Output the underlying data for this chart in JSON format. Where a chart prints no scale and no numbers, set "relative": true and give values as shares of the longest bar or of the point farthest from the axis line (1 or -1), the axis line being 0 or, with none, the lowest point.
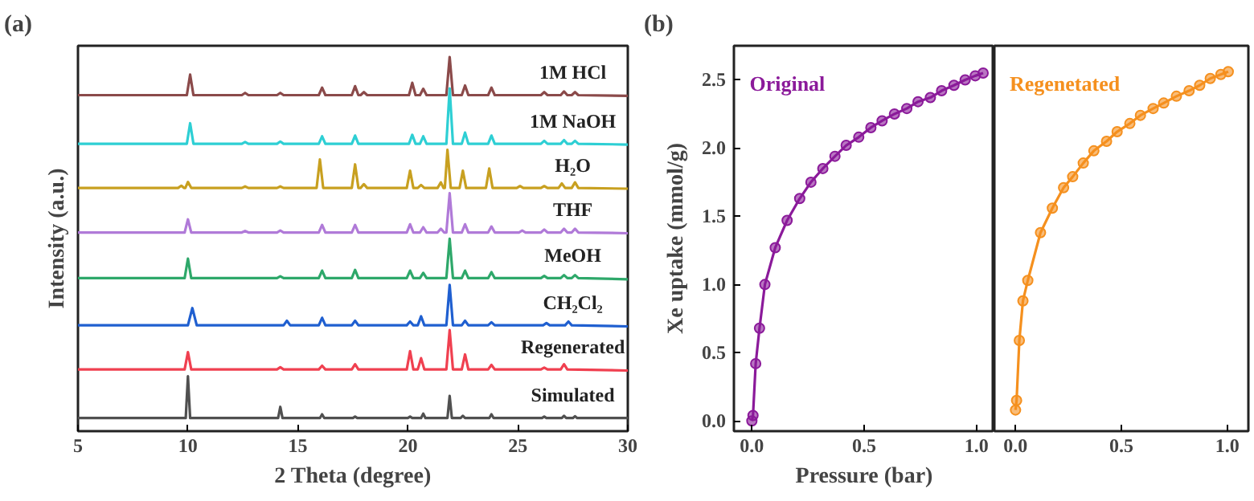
{
  "chart_data": [
    {
      "type": "line",
      "annotations": [
        "(a)"
      ],
      "xlabel": "2 Theta (degree)",
      "ylabel": "Intensity (a.u.)",
      "relative": true,
      "tick_labels": "x",
      "xlim": [
        5,
        30
      ],
      "xticks": [
        5,
        10,
        15,
        20,
        25,
        30
      ],
      "grid": false,
      "legend": false,
      "marker": "none",
      "line_style": "solid",
      "series": [
        {
          "name": "1M HCl",
          "color": "#8b4a4a",
          "x": [
            5,
            9.95,
            10.1,
            10.25,
            12.45,
            12.6,
            12.75,
            14.05,
            14.2,
            14.35,
            15.95,
            16.1,
            16.25,
            17.45,
            17.6,
            17.75,
            17.85,
            18.0,
            18.15,
            20.05,
            20.2,
            20.35,
            20.55,
            20.7,
            20.85,
            21.75,
            21.9,
            22.05,
            22.45,
            22.6,
            22.75,
            23.65,
            23.8,
            23.95,
            26.05,
            26.2,
            26.35,
            26.95,
            27.1,
            27.25,
            27.45,
            27.6,
            27.75,
            30
          ],
          "values": [
            0.898,
            0.898,
            0.953,
            0.898,
            0.898,
            0.904,
            0.898,
            0.898,
            0.904,
            0.898,
            0.898,
            0.918,
            0.898,
            0.898,
            0.922,
            0.898,
            0.898,
            0.906,
            0.898,
            0.898,
            0.931,
            0.898,
            0.898,
            0.915,
            0.898,
            0.898,
            1.0,
            0.898,
            0.898,
            0.924,
            0.898,
            0.898,
            0.918,
            0.898,
            0.898,
            0.906,
            0.898,
            0.898,
            0.908,
            0.898,
            0.898,
            0.906,
            0.898,
            0.896
          ]
        },
        {
          "name": "1M NaOH",
          "color": "#2ecfd4",
          "x": [
            5,
            9.95,
            10.1,
            10.25,
            12.45,
            12.6,
            12.75,
            14.05,
            14.2,
            14.35,
            15.95,
            16.1,
            16.25,
            17.45,
            17.6,
            17.75,
            20.05,
            20.2,
            20.35,
            20.55,
            20.7,
            20.85,
            21.75,
            21.9,
            22.05,
            22.45,
            22.6,
            22.75,
            23.65,
            23.8,
            23.95,
            26.05,
            26.2,
            26.35,
            26.95,
            27.1,
            27.25,
            27.45,
            27.6,
            27.75,
            30
          ],
          "values": [
            0.768,
            0.768,
            0.823,
            0.768,
            0.768,
            0.773,
            0.768,
            0.768,
            0.774,
            0.768,
            0.768,
            0.788,
            0.768,
            0.768,
            0.79,
            0.768,
            0.768,
            0.792,
            0.768,
            0.768,
            0.788,
            0.768,
            0.768,
            0.916,
            0.768,
            0.768,
            0.798,
            0.768,
            0.768,
            0.79,
            0.768,
            0.768,
            0.776,
            0.768,
            0.768,
            0.778,
            0.768,
            0.768,
            0.776,
            0.768,
            0.766
          ]
        },
        {
          "name": "H₂O",
          "color": "#c8a020",
          "x": [
            5,
            9.55,
            9.7,
            9.82,
            9.88,
            10.0,
            10.15,
            12.45,
            12.6,
            12.75,
            14.05,
            14.2,
            14.35,
            15.85,
            16.0,
            16.15,
            17.45,
            17.6,
            17.75,
            17.85,
            18.0,
            18.15,
            19.95,
            20.1,
            20.25,
            20.45,
            20.6,
            20.75,
            21.35,
            21.5,
            21.62,
            21.68,
            21.8,
            21.95,
            22.35,
            22.5,
            22.65,
            23.55,
            23.7,
            23.85,
            24.95,
            25.1,
            25.25,
            26.05,
            26.2,
            26.35,
            26.85,
            27.0,
            27.15,
            27.45,
            27.6,
            27.75,
            30
          ],
          "values": [
            0.65,
            0.65,
            0.656,
            0.65,
            0.65,
            0.666,
            0.65,
            0.65,
            0.654,
            0.65,
            0.65,
            0.654,
            0.65,
            0.65,
            0.726,
            0.65,
            0.65,
            0.713,
            0.65,
            0.65,
            0.66,
            0.65,
            0.65,
            0.696,
            0.65,
            0.65,
            0.658,
            0.65,
            0.65,
            0.665,
            0.65,
            0.65,
            0.752,
            0.65,
            0.65,
            0.696,
            0.65,
            0.65,
            0.702,
            0.65,
            0.65,
            0.655,
            0.65,
            0.65,
            0.655,
            0.65,
            0.65,
            0.662,
            0.65,
            0.65,
            0.665,
            0.65,
            0.648
          ]
        },
        {
          "name": "THF",
          "color": "#b07ad8",
          "x": [
            5,
            9.85,
            10.0,
            10.15,
            12.45,
            12.6,
            12.75,
            14.05,
            14.2,
            14.35,
            15.95,
            16.1,
            16.25,
            17.45,
            17.6,
            17.75,
            19.95,
            20.1,
            20.25,
            20.55,
            20.7,
            20.85,
            21.35,
            21.5,
            21.65,
            21.75,
            21.9,
            22.05,
            22.45,
            22.6,
            22.75,
            23.65,
            23.8,
            23.95,
            25.05,
            25.2,
            25.35,
            26.05,
            26.2,
            26.35,
            26.95,
            27.1,
            27.25,
            27.45,
            27.6,
            27.75,
            30
          ],
          "values": [
            0.531,
            0.531,
            0.566,
            0.531,
            0.531,
            0.535,
            0.531,
            0.531,
            0.536,
            0.531,
            0.531,
            0.551,
            0.531,
            0.531,
            0.551,
            0.531,
            0.531,
            0.553,
            0.531,
            0.531,
            0.545,
            0.531,
            0.531,
            0.541,
            0.531,
            0.531,
            0.636,
            0.531,
            0.531,
            0.553,
            0.531,
            0.531,
            0.547,
            0.531,
            0.531,
            0.536,
            0.531,
            0.531,
            0.539,
            0.531,
            0.531,
            0.541,
            0.531,
            0.531,
            0.541,
            0.531,
            0.529
          ]
        },
        {
          "name": "MeOH",
          "color": "#2ea86a",
          "x": [
            5,
            9.85,
            10.0,
            10.15,
            14.05,
            14.2,
            14.35,
            15.95,
            16.1,
            16.25,
            17.45,
            17.6,
            17.75,
            19.95,
            20.1,
            20.25,
            20.55,
            20.7,
            20.85,
            21.75,
            21.9,
            22.05,
            22.45,
            22.6,
            22.75,
            23.65,
            23.8,
            23.95,
            26.05,
            26.2,
            26.35,
            26.95,
            27.1,
            27.25,
            27.45,
            27.6,
            27.75,
            30
          ],
          "values": [
            0.409,
            0.409,
            0.461,
            0.409,
            0.409,
            0.414,
            0.409,
            0.409,
            0.429,
            0.409,
            0.409,
            0.431,
            0.409,
            0.409,
            0.429,
            0.409,
            0.409,
            0.423,
            0.409,
            0.409,
            0.514,
            0.409,
            0.409,
            0.429,
            0.409,
            0.409,
            0.425,
            0.409,
            0.409,
            0.415,
            0.409,
            0.409,
            0.417,
            0.409,
            0.409,
            0.417,
            0.409,
            0.406
          ]
        },
        {
          "name": "CH₂Cl₂",
          "color": "#1f5fd0",
          "x": [
            5,
            10.0,
            10.2,
            10.4,
            14.35,
            14.5,
            14.65,
            15.95,
            16.1,
            16.25,
            17.45,
            17.6,
            17.75,
            19.95,
            20.1,
            20.25,
            20.45,
            20.6,
            20.75,
            21.75,
            21.9,
            22.05,
            22.45,
            22.6,
            22.75,
            23.65,
            23.8,
            23.95,
            26.15,
            26.3,
            26.45,
            27.15,
            27.3,
            27.45,
            30
          ],
          "values": [
            0.283,
            0.283,
            0.329,
            0.283,
            0.283,
            0.295,
            0.283,
            0.283,
            0.303,
            0.283,
            0.283,
            0.295,
            0.283,
            0.283,
            0.293,
            0.283,
            0.283,
            0.307,
            0.283,
            0.283,
            0.391,
            0.283,
            0.283,
            0.295,
            0.283,
            0.283,
            0.291,
            0.283,
            0.283,
            0.289,
            0.283,
            0.283,
            0.293,
            0.283,
            0.28
          ]
        },
        {
          "name": "Regenerated",
          "color": "#f04050",
          "x": [
            5,
            9.85,
            10.0,
            10.15,
            14.05,
            14.2,
            14.35,
            15.95,
            16.1,
            16.25,
            17.45,
            17.6,
            17.75,
            19.95,
            20.1,
            20.25,
            20.45,
            20.6,
            20.75,
            21.75,
            21.9,
            22.05,
            22.45,
            22.6,
            22.75,
            23.65,
            23.8,
            23.95,
            26.05,
            26.2,
            26.35,
            26.95,
            27.1,
            27.25,
            30
          ],
          "values": [
            0.165,
            0.165,
            0.211,
            0.165,
            0.165,
            0.171,
            0.165,
            0.165,
            0.175,
            0.165,
            0.165,
            0.179,
            0.165,
            0.165,
            0.214,
            0.165,
            0.165,
            0.195,
            0.165,
            0.165,
            0.27,
            0.165,
            0.165,
            0.205,
            0.165,
            0.165,
            0.177,
            0.165,
            0.165,
            0.17,
            0.165,
            0.165,
            0.179,
            0.165,
            0.162
          ]
        },
        {
          "name": "Simulated",
          "color": "#505050",
          "x": [
            5,
            9.9,
            10.0,
            10.1,
            14.1,
            14.2,
            14.3,
            16.0,
            16.1,
            16.2,
            17.5,
            17.6,
            17.7,
            20.0,
            20.1,
            20.2,
            20.6,
            20.7,
            20.8,
            21.8,
            21.9,
            22.0,
            22.4,
            22.5,
            22.6,
            23.7,
            23.8,
            23.9,
            26.1,
            26.2,
            26.3,
            27.0,
            27.1,
            27.2,
            27.5,
            27.6,
            27.7,
            30
          ],
          "values": [
            0.035,
            0.035,
            0.147,
            0.035,
            0.035,
            0.065,
            0.035,
            0.035,
            0.045,
            0.035,
            0.035,
            0.039,
            0.035,
            0.035,
            0.039,
            0.035,
            0.035,
            0.047,
            0.035,
            0.035,
            0.094,
            0.035,
            0.035,
            0.041,
            0.035,
            0.035,
            0.045,
            0.035,
            0.035,
            0.039,
            0.035,
            0.035,
            0.041,
            0.035,
            0.035,
            0.04,
            0.035,
            0.035
          ]
        }
      ]
    },
    {
      "type": "line",
      "annotations": [
        "(b)"
      ],
      "xlabel": "Pressure (bar)",
      "ylabel": "Xe uptake (mmol/g)",
      "xlim": [
        -0.08,
        1.08
      ],
      "ylim": [
        -0.075,
        2.75
      ],
      "xticks": [
        {
          "value": 0,
          "label": "0.0"
        },
        {
          "value": 0.5,
          "label": "0.5"
        },
        {
          "value": 1,
          "label": "1.0"
        }
      ],
      "yticks": [
        {
          "value": 0,
          "label": "0.0"
        },
        {
          "value": 0.5,
          "label": "0.5"
        },
        {
          "value": 1,
          "label": "1.0"
        },
        {
          "value": 1.5,
          "label": "1.5"
        },
        {
          "value": 2,
          "label": "2.0"
        },
        {
          "value": 2.5,
          "label": "2.5"
        }
      ],
      "grid": false,
      "legend": false,
      "marker": "circle",
      "line_style": "solid",
      "series": [
        {
          "name": "Original",
          "color": "#8b1a9a",
          "x": [
            0,
            0.005,
            0.017,
            0.034,
            0.058,
            0.104,
            0.157,
            0.213,
            0.263,
            0.316,
            0.37,
            0.42,
            0.476,
            0.53,
            0.58,
            0.635,
            0.69,
            0.74,
            0.795,
            0.845,
            0.9,
            0.95,
            0.995,
            1.03
          ],
          "values": [
            0,
            0.04,
            0.42,
            0.68,
            1.0,
            1.27,
            1.47,
            1.63,
            1.75,
            1.85,
            1.94,
            2.02,
            2.08,
            2.15,
            2.2,
            2.25,
            2.29,
            2.34,
            2.37,
            2.42,
            2.46,
            2.5,
            2.53,
            2.55
          ]
        }
      ]
    },
    {
      "type": "line",
      "tick_labels": "x",
      "xlim": [
        -0.1,
        1.1
      ],
      "ylim": [
        -0.075,
        2.75
      ],
      "xticks": [
        {
          "value": 0,
          "label": "0.0"
        },
        {
          "value": 0.5,
          "label": "0.5"
        },
        {
          "value": 1,
          "label": "1.0"
        }
      ],
      "grid": false,
      "legend": false,
      "marker": "circle",
      "line_style": "solid",
      "series": [
        {
          "name": "Regenetated",
          "color": "#f5901e",
          "x": [
            0,
            0.005,
            0.018,
            0.035,
            0.058,
            0.118,
            0.174,
            0.227,
            0.27,
            0.32,
            0.37,
            0.43,
            0.48,
            0.54,
            0.59,
            0.65,
            0.7,
            0.76,
            0.82,
            0.87,
            0.92,
            0.97,
            1.005
          ],
          "values": [
            0.08,
            0.15,
            0.59,
            0.88,
            1.03,
            1.38,
            1.56,
            1.71,
            1.79,
            1.89,
            1.98,
            2.05,
            2.12,
            2.18,
            2.24,
            2.29,
            2.33,
            2.38,
            2.42,
            2.46,
            2.51,
            2.54,
            2.56
          ]
        }
      ]
    }
  ]
}
